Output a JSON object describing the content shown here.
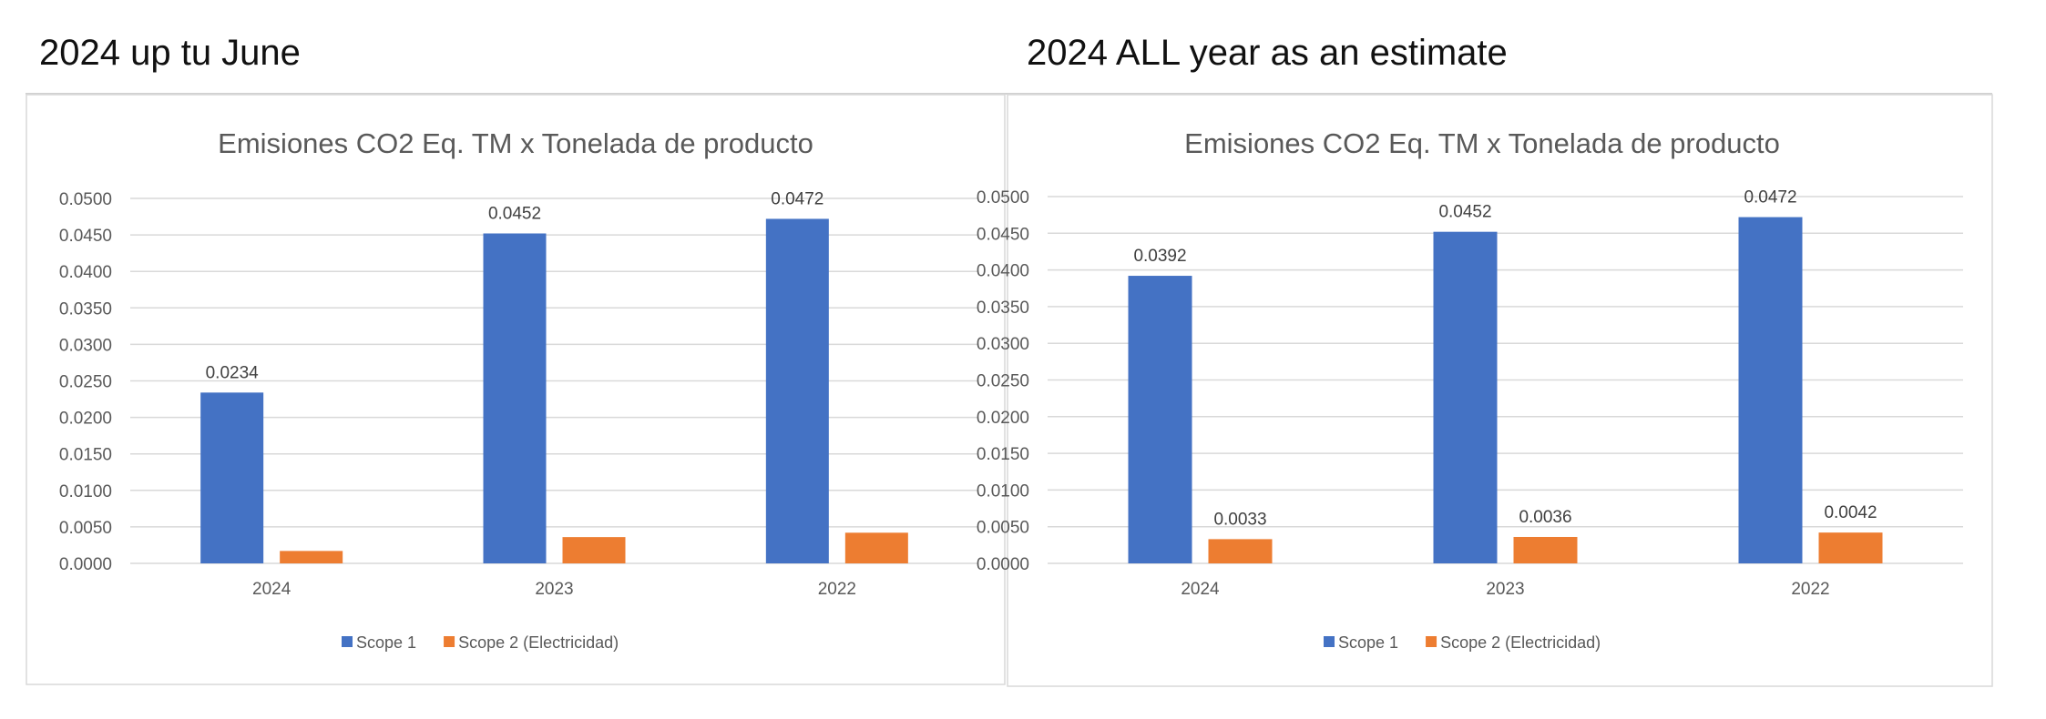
{
  "headings": [
    "2024 up tu June",
    "2024 ALL year as an estimate"
  ],
  "colors": {
    "scope1": "#4472C4",
    "scope2": "#ED7D31",
    "grid": "#D9D9D9",
    "text": "#595959"
  },
  "chart_data": [
    {
      "type": "bar",
      "title": "Emisiones CO2 Eq. TM x Tonelada de producto",
      "categories": [
        "2024",
        "2023",
        "2022"
      ],
      "series": [
        {
          "name": "Scope 1",
          "values": [
            0.0234,
            0.0452,
            0.0472
          ],
          "data_labels": [
            "0.0234",
            "0.0452",
            "0.0472"
          ]
        },
        {
          "name": "Scope 2 (Electricidad)",
          "values": [
            0.0017,
            0.0036,
            0.0042
          ],
          "data_labels": []
        }
      ],
      "yticks": [
        "0.0000",
        "0.0050",
        "0.0100",
        "0.0150",
        "0.0200",
        "0.0250",
        "0.0300",
        "0.0350",
        "0.0400",
        "0.0450",
        "0.0500"
      ],
      "ylim": [
        0,
        0.05
      ],
      "grid": true,
      "legend": "bottom"
    },
    {
      "type": "bar",
      "title": "Emisiones CO2 Eq. TM x Tonelada de producto",
      "categories": [
        "2024",
        "2023",
        "2022"
      ],
      "series": [
        {
          "name": "Scope 1",
          "values": [
            0.0392,
            0.0452,
            0.0472
          ],
          "data_labels": [
            "0.0392",
            "0.0452",
            "0.0472"
          ]
        },
        {
          "name": "Scope 2 (Electricidad)",
          "values": [
            0.0033,
            0.0036,
            0.0042
          ],
          "data_labels": [
            "0.0033",
            "0.0036",
            "0.0042"
          ]
        }
      ],
      "yticks": [
        "0.0000",
        "0.0050",
        "0.0100",
        "0.0150",
        "0.0200",
        "0.0250",
        "0.0300",
        "0.0350",
        "0.0400",
        "0.0450",
        "0.0500"
      ],
      "ylim": [
        0,
        0.05
      ],
      "grid": true,
      "legend": "bottom"
    }
  ]
}
